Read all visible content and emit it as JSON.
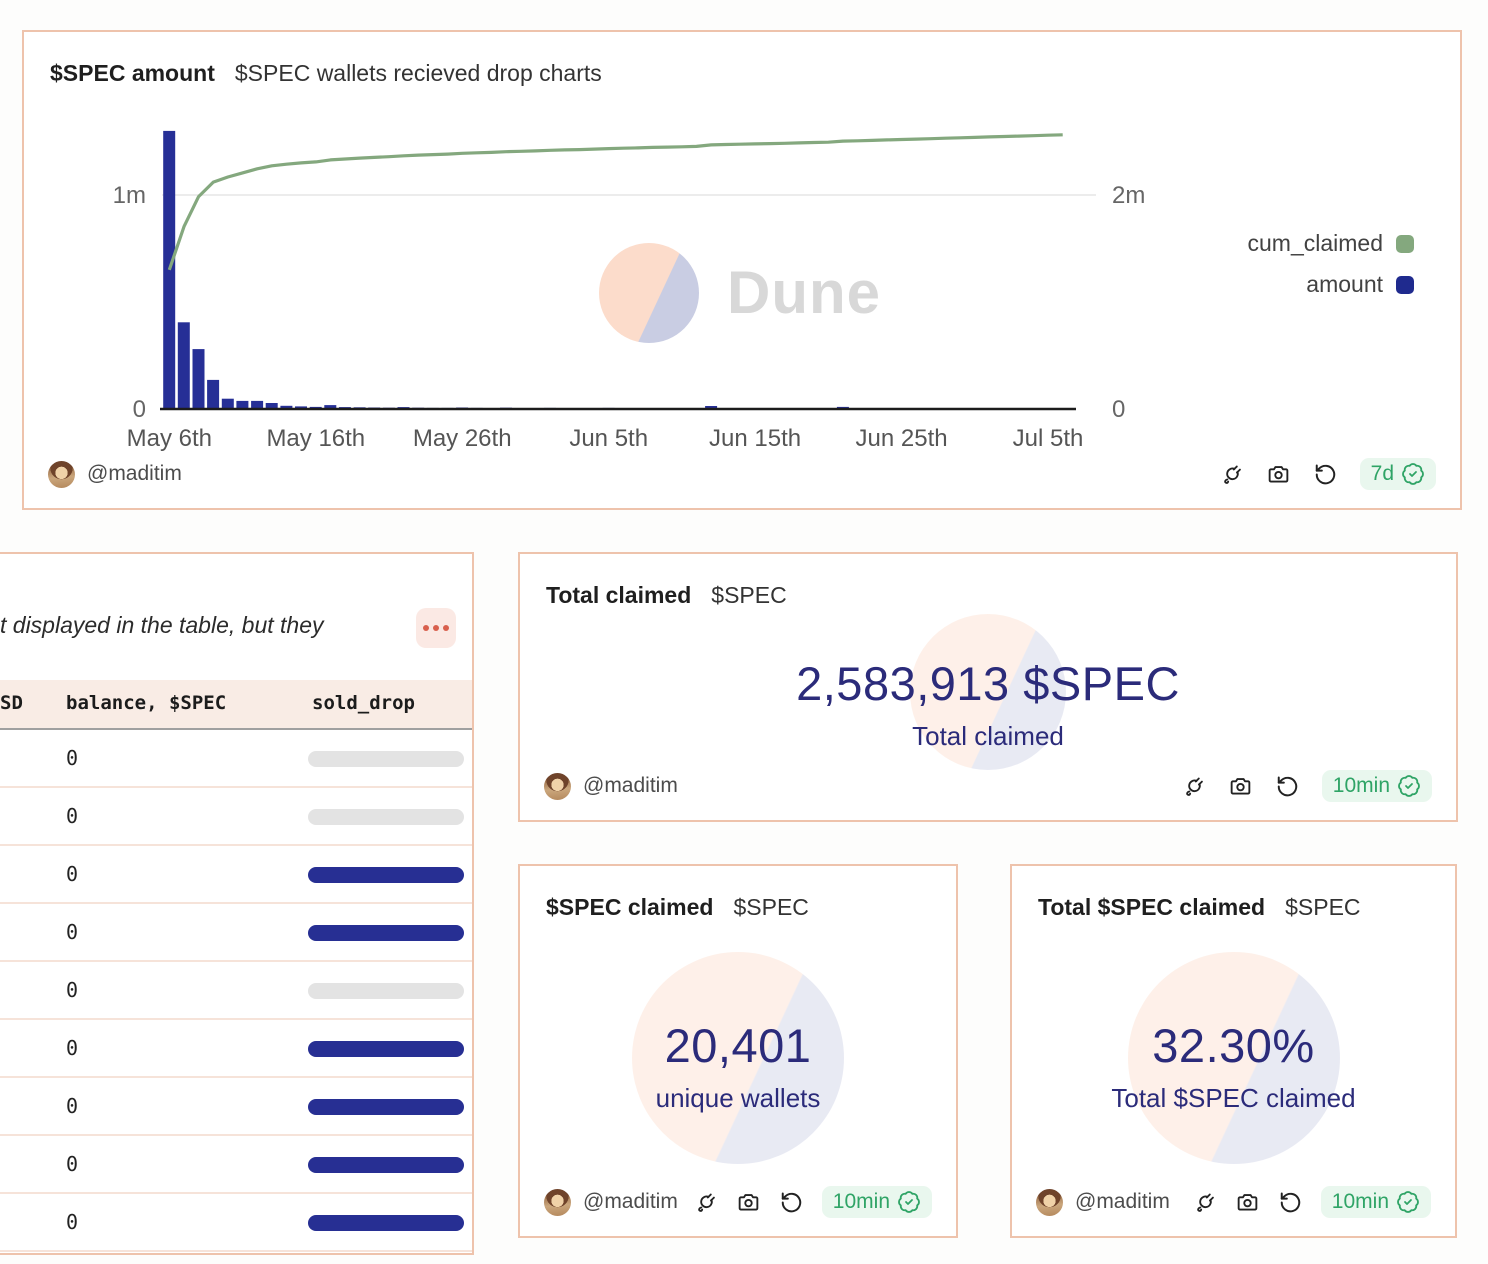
{
  "theme": {
    "card_border": "#eec3ac",
    "navy": "#272f93",
    "navy_text": "#2b2b7a",
    "green": "#84a87e",
    "badge_green": "#2fa466"
  },
  "chart_card": {
    "title": "$SPEC amount",
    "subtitle": "$SPEC wallets recieved drop charts",
    "watermark_text": "Dune",
    "author": "@maditim",
    "refresh_badge": "7d",
    "legend": [
      {
        "label": "cum_claimed",
        "color": "#84a87e"
      },
      {
        "label": "amount",
        "color": "#1f2a8e"
      }
    ],
    "chart_data": {
      "type": "bar",
      "title": "$SPEC amount",
      "x_tick_labels": [
        "May 6th",
        "May 16th",
        "May 26th",
        "Jun 5th",
        "Jun 15th",
        "Jun 25th",
        "Jul 5th"
      ],
      "x_tick_day_index": [
        0,
        10,
        20,
        30,
        40,
        50,
        60
      ],
      "left_axis": {
        "tick_labels": [
          "1m",
          "0"
        ],
        "tick_values": [
          1000000,
          0
        ],
        "max": 1318000
      },
      "right_axis": {
        "tick_labels": [
          "2m",
          "0"
        ],
        "tick_values": [
          2000000,
          0
        ],
        "max": 2636000
      },
      "grid": "horizontal-1m-only",
      "legend_position": "right",
      "series": [
        {
          "name": "amount",
          "type": "bar",
          "axis": "left",
          "color": "#262f96",
          "values": [
            1300000,
            405000,
            280000,
            136000,
            48000,
            38000,
            38000,
            28000,
            15000,
            12000,
            10000,
            18000,
            9000,
            8000,
            7000,
            6000,
            9000,
            6000,
            5000,
            5000,
            7000,
            5000,
            4000,
            6000,
            4000,
            4000,
            5000,
            4000,
            3000,
            4000,
            5000,
            4000,
            3000,
            4000,
            3000,
            3000,
            4000,
            14000,
            3000,
            3000,
            3000,
            3000,
            3000,
            3000,
            4000,
            3000,
            10000,
            3000,
            4000,
            4000,
            4000,
            4000,
            4000,
            4000,
            4000,
            4000,
            4000,
            4000,
            4000,
            4000,
            4000,
            4000
          ]
        },
        {
          "name": "cum_claimed",
          "type": "line",
          "axis": "right",
          "color": "#84a87e",
          "values": [
            1300000,
            1705000,
            1985000,
            2121000,
            2169000,
            2207000,
            2245000,
            2273000,
            2288000,
            2300000,
            2310000,
            2328000,
            2337000,
            2345000,
            2352000,
            2358000,
            2367000,
            2373000,
            2378000,
            2383000,
            2390000,
            2395000,
            2399000,
            2405000,
            2409000,
            2413000,
            2418000,
            2422000,
            2425000,
            2429000,
            2434000,
            2438000,
            2441000,
            2445000,
            2448000,
            2451000,
            2455000,
            2469000,
            2472000,
            2475000,
            2478000,
            2481000,
            2484000,
            2487000,
            2491000,
            2494000,
            2504000,
            2507000,
            2511000,
            2515000,
            2519000,
            2523000,
            2527000,
            2531000,
            2535000,
            2539000,
            2543000,
            2547000,
            2551000,
            2555000,
            2559000,
            2563000
          ]
        }
      ]
    }
  },
  "table_card": {
    "note_text": "t displayed in the table, but they",
    "columns": [
      {
        "label": "SD",
        "x": 8
      },
      {
        "label": "balance, $SPEC",
        "x": 74
      },
      {
        "label": "sold_drop",
        "x": 320
      }
    ],
    "rows": [
      {
        "balance": "0",
        "bar": "gray"
      },
      {
        "balance": "0",
        "bar": "gray"
      },
      {
        "balance": "0",
        "bar": "navy"
      },
      {
        "balance": "0",
        "bar": "navy"
      },
      {
        "balance": "0",
        "bar": "gray"
      },
      {
        "balance": "0",
        "bar": "navy"
      },
      {
        "balance": "0",
        "bar": "navy"
      },
      {
        "balance": "0",
        "bar": "navy"
      },
      {
        "balance": "0",
        "bar": "navy"
      }
    ]
  },
  "total_claimed_card": {
    "title": "Total claimed",
    "subtitle": "$SPEC",
    "value": "2,583,913 $SPEC",
    "caption": "Total claimed",
    "author": "@maditim",
    "refresh_badge": "10min"
  },
  "wallets_card": {
    "title": "$SPEC claimed",
    "subtitle": "$SPEC",
    "value": "20,401",
    "caption": "unique wallets",
    "author": "@maditim",
    "refresh_badge": "10min"
  },
  "percent_card": {
    "title": "Total $SPEC claimed",
    "subtitle": "$SPEC",
    "value": "32.30%",
    "caption": "Total $SPEC claimed",
    "author": "@maditim",
    "refresh_badge": "10min"
  }
}
